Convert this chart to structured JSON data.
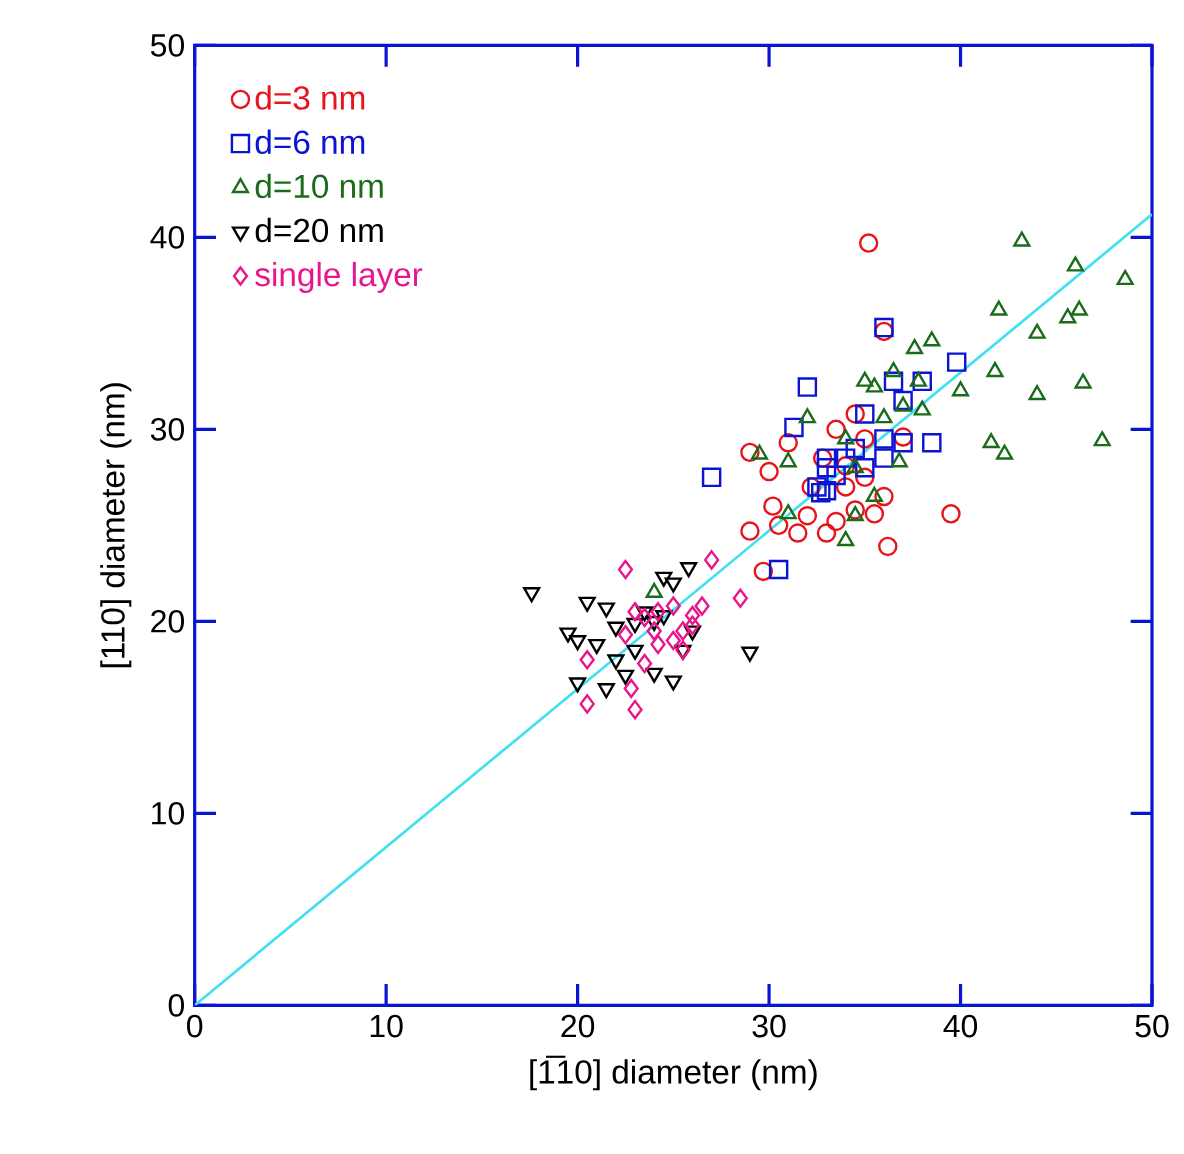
{
  "chart_data": {
    "type": "scatter",
    "xlabel": "[1̅10] diameter  (nm)",
    "ylabel": "[110] diameter  (nm)",
    "xlim": [
      0,
      50
    ],
    "ylim": [
      0,
      50
    ],
    "xticks": [
      0,
      10,
      20,
      30,
      40,
      50
    ],
    "yticks": [
      0,
      10,
      20,
      30,
      40,
      50
    ],
    "grid": false,
    "legend": "top left",
    "series": [
      {
        "name": "d=3 nm",
        "color": "#e8141c",
        "marker": "circle",
        "x": [
          35.2,
          36,
          34.5,
          33.5,
          29,
          31,
          30,
          32.8,
          34,
          35,
          36,
          34.5,
          35.5,
          33.5,
          32,
          30.5,
          31.5,
          29,
          33,
          36.2,
          39.5,
          29.7,
          32.2,
          35,
          37,
          30.2,
          34
        ],
        "values": [
          39.7,
          35.1,
          30.8,
          30,
          28.8,
          29.3,
          27.8,
          28.5,
          28.1,
          27.5,
          26.5,
          25.8,
          25.6,
          25.2,
          25.5,
          25,
          24.6,
          24.7,
          24.6,
          23.9,
          25.6,
          22.6,
          27,
          29.5,
          29.6,
          26,
          27
        ]
      },
      {
        "name": "d=6 nm",
        "color": "#0a14d2",
        "marker": "square",
        "x": [
          30.5,
          27,
          31.3,
          32,
          36,
          37,
          36.5,
          38,
          39.8,
          37,
          38.5,
          35,
          34.5,
          33,
          32.5,
          33,
          33.5,
          35,
          34,
          36,
          32.7,
          33,
          36
        ],
        "values": [
          22.7,
          27.5,
          30.1,
          32.2,
          35.3,
          31.5,
          32.5,
          32.5,
          33.5,
          29.3,
          29.3,
          30.8,
          29,
          28.5,
          27,
          26.8,
          27.6,
          28,
          28.5,
          29.5,
          26.7,
          28,
          28.5
        ]
      },
      {
        "name": "d=10 nm",
        "color": "#1a6b1a",
        "marker": "triangle",
        "x": [
          43.2,
          46,
          48.6,
          42,
          45.6,
          46.2,
          44,
          38.5,
          37.6,
          40,
          41.8,
          36.5,
          35.5,
          35,
          36,
          38,
          37.8,
          37,
          44,
          46.4,
          41.6,
          42.3,
          47.4,
          36.8,
          34.5,
          29.5,
          31,
          34.5,
          31,
          32,
          34,
          34,
          35.5,
          24
        ],
        "values": [
          39.8,
          38.5,
          37.8,
          36.2,
          35.8,
          36.2,
          35,
          34.6,
          34.2,
          32,
          33,
          33,
          32.2,
          32.5,
          30.6,
          31,
          32.5,
          31.2,
          31.8,
          32.4,
          29.3,
          28.7,
          29.4,
          28.3,
          28,
          28.7,
          28.3,
          25.5,
          25.6,
          30.6,
          24.2,
          29.5,
          26.5,
          21.5
        ]
      },
      {
        "name": "d=20 nm",
        "color": "#000000",
        "marker": "triangle-down",
        "x": [
          17.6,
          20.5,
          19.5,
          20,
          21,
          21.5,
          22,
          23,
          22,
          22.5,
          20,
          21.5,
          24,
          25,
          23.5,
          24.5,
          25,
          25.8,
          24,
          23,
          25.5,
          29,
          26,
          24.5
        ],
        "values": [
          21.5,
          21,
          19.4,
          19,
          18.8,
          20.7,
          19.7,
          19.9,
          18,
          17.2,
          16.8,
          16.5,
          17.3,
          16.9,
          20.5,
          20.3,
          22,
          22.8,
          20,
          18.5,
          18.5,
          18.4,
          19.5,
          22.3
        ]
      },
      {
        "name": "single layer",
        "color": "#e8168c",
        "marker": "diamond",
        "x": [
          20.5,
          20.5,
          22.5,
          22.5,
          23,
          22.8,
          23.5,
          24.2,
          23.5,
          24.2,
          25,
          25.5,
          26,
          26.5,
          27,
          25.5,
          24,
          23,
          28.5,
          26,
          25
        ],
        "values": [
          15.7,
          18,
          19.3,
          22.7,
          15.4,
          16.5,
          17.8,
          18.8,
          20.2,
          20.5,
          20.8,
          19.5,
          19.8,
          20.8,
          23.2,
          18.5,
          19.5,
          20.5,
          21.2,
          20.3,
          19
        ]
      },
      {
        "type": "line",
        "color": "#40e0f0",
        "marker": "none",
        "line_style": "solid",
        "x": [
          0,
          50
        ],
        "values": [
          0,
          41.2
        ]
      }
    ]
  }
}
